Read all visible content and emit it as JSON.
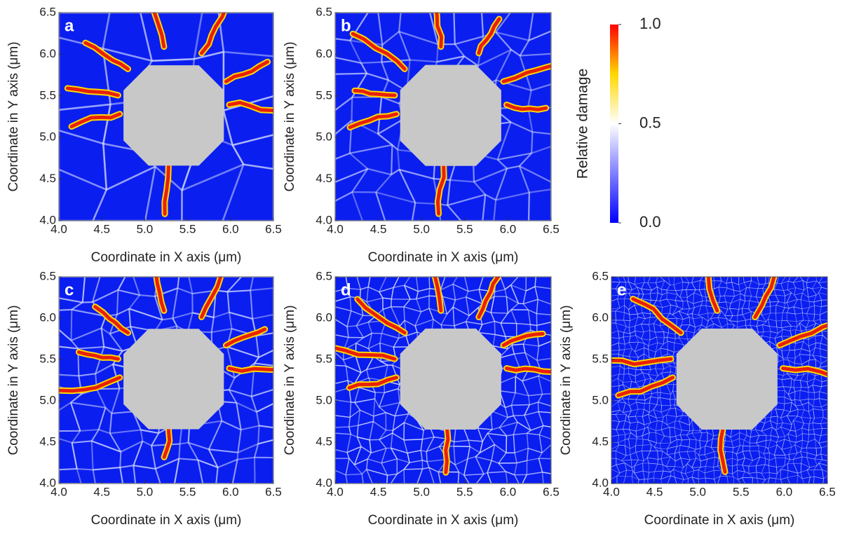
{
  "chart_data": [
    {
      "type": "heatmap",
      "label": "a",
      "xlabel": "Coordinate in X axis (μm)",
      "ylabel": "Coordinate in Y axis (μm)",
      "xlim": [
        4.0,
        6.5
      ],
      "ylim": [
        4.0,
        6.5
      ],
      "xticks": [
        {
          "value": 4.0,
          "label": "4.0"
        },
        {
          "value": 4.5,
          "label": "4.5"
        },
        {
          "value": 5.0,
          "label": "5.0"
        },
        {
          "value": 5.5,
          "label": "5.5"
        },
        {
          "value": 6.0,
          "label": "6.0"
        },
        {
          "value": 6.5,
          "label": "6.5"
        }
      ],
      "yticks": [
        {
          "value": 4.0,
          "label": "4.0"
        },
        {
          "value": 4.5,
          "label": "4.5"
        },
        {
          "value": 5.0,
          "label": "5.0"
        },
        {
          "value": 5.5,
          "label": "5.5"
        },
        {
          "value": 6.0,
          "label": "6.0"
        },
        {
          "value": 6.5,
          "label": "6.5"
        }
      ]
    },
    {
      "type": "heatmap",
      "label": "b",
      "xlabel": "Coordinate in X axis (μm)",
      "ylabel": "Coordinate in Y axis (μm)",
      "xlim": [
        4.0,
        6.5
      ],
      "ylim": [
        4.0,
        6.5
      ],
      "xticks": [
        {
          "value": 4.0,
          "label": "4.0"
        },
        {
          "value": 4.5,
          "label": "4.5"
        },
        {
          "value": 5.0,
          "label": "5.0"
        },
        {
          "value": 5.5,
          "label": "5.5"
        },
        {
          "value": 6.0,
          "label": "6.0"
        },
        {
          "value": 6.5,
          "label": "6.5"
        }
      ],
      "yticks": [
        {
          "value": 4.0,
          "label": "4.0"
        },
        {
          "value": 4.5,
          "label": "4.5"
        },
        {
          "value": 5.0,
          "label": "5.0"
        },
        {
          "value": 5.5,
          "label": "5.5"
        },
        {
          "value": 6.0,
          "label": "6.0"
        },
        {
          "value": 6.5,
          "label": "6.5"
        }
      ]
    },
    {
      "type": "heatmap",
      "label": "c",
      "xlabel": "Coordinate in X axis (μm)",
      "ylabel": "Coordinate in Y axis (μm)",
      "xlim": [
        4.0,
        6.5
      ],
      "ylim": [
        4.0,
        6.5
      ],
      "xticks": [
        {
          "value": 4.0,
          "label": "4.0"
        },
        {
          "value": 4.5,
          "label": "4.5"
        },
        {
          "value": 5.0,
          "label": "5.0"
        },
        {
          "value": 5.5,
          "label": "5.5"
        },
        {
          "value": 6.0,
          "label": "6.0"
        },
        {
          "value": 6.5,
          "label": "6.5"
        }
      ],
      "yticks": [
        {
          "value": 4.0,
          "label": "4.0"
        },
        {
          "value": 4.5,
          "label": "4.5"
        },
        {
          "value": 5.0,
          "label": "5.0"
        },
        {
          "value": 5.5,
          "label": "5.5"
        },
        {
          "value": 6.0,
          "label": "6.0"
        },
        {
          "value": 6.5,
          "label": "6.5"
        }
      ]
    },
    {
      "type": "heatmap",
      "label": "d",
      "xlabel": "Coordinate in X axis (μm)",
      "ylabel": "Coordinate in Y axis (μm)",
      "xlim": [
        4.0,
        6.5
      ],
      "ylim": [
        4.0,
        6.5
      ],
      "xticks": [
        {
          "value": 4.0,
          "label": "4.0"
        },
        {
          "value": 4.5,
          "label": "4.5"
        },
        {
          "value": 5.0,
          "label": "5.0"
        },
        {
          "value": 5.5,
          "label": "5.5"
        },
        {
          "value": 6.0,
          "label": "6.0"
        },
        {
          "value": 6.5,
          "label": "6.5"
        }
      ],
      "yticks": [
        {
          "value": 4.0,
          "label": "4.0"
        },
        {
          "value": 4.5,
          "label": "4.5"
        },
        {
          "value": 5.0,
          "label": "5.0"
        },
        {
          "value": 5.5,
          "label": "5.5"
        },
        {
          "value": 6.0,
          "label": "6.0"
        },
        {
          "value": 6.5,
          "label": "6.5"
        }
      ]
    },
    {
      "type": "heatmap",
      "label": "e",
      "xlabel": "Coordinate in X axis (μm)",
      "ylabel": "Coordinate in Y axis (μm)",
      "xlim": [
        4.0,
        6.5
      ],
      "ylim": [
        4.0,
        6.5
      ],
      "xticks": [
        {
          "value": 4.0,
          "label": "4.0"
        },
        {
          "value": 4.5,
          "label": "4.5"
        },
        {
          "value": 5.0,
          "label": "5.0"
        },
        {
          "value": 5.5,
          "label": "5.5"
        },
        {
          "value": 6.0,
          "label": "6.0"
        },
        {
          "value": 6.5,
          "label": "6.5"
        }
      ],
      "yticks": [
        {
          "value": 4.0,
          "label": "4.0"
        },
        {
          "value": 4.5,
          "label": "4.5"
        },
        {
          "value": 5.0,
          "label": "5.0"
        },
        {
          "value": 5.5,
          "label": "5.5"
        },
        {
          "value": 6.0,
          "label": "6.0"
        },
        {
          "value": 6.5,
          "label": "6.5"
        }
      ]
    }
  ],
  "colorbar": {
    "title": "Relative damage",
    "lim": [
      0.0,
      1.0
    ],
    "ticks": [
      {
        "value": 0.0,
        "label": "0.0"
      },
      {
        "value": 0.5,
        "label": "0.5"
      },
      {
        "value": 1.0,
        "label": "1.0"
      }
    ],
    "colors": [
      "#0000ff",
      "#ffffff",
      "#ffd800",
      "#ff0000"
    ]
  }
}
